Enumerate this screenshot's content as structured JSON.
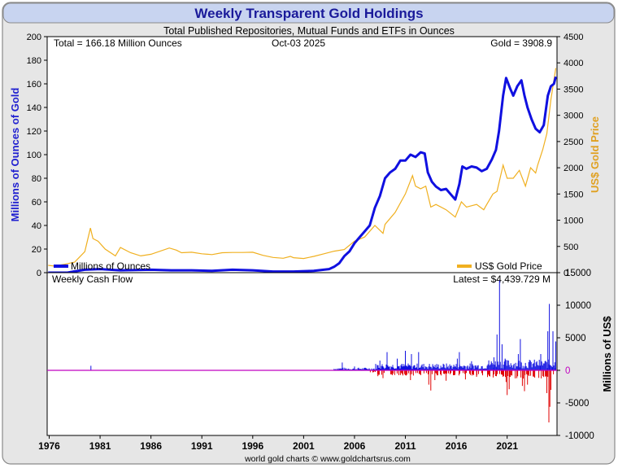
{
  "title": "Weekly Transparent Gold Holdings",
  "subtitle": "Total Published Repositories, Mutual Funds and ETFs in Ounces",
  "footer": "world gold charts © www.goldchartsrus.com",
  "colors": {
    "holdings": "#1010e0",
    "gold_price": "#f0b020",
    "inflow": "#1010e0",
    "outflow": "#e00000",
    "zero_line": "#c000c0",
    "title_bar": "#c8d4f0"
  },
  "chart_data": [
    {
      "type": "line",
      "panel": "top",
      "annotations": {
        "total": "Total = 166.18 Million Ounces",
        "date": "Oct-03  2025",
        "gold": "Gold = 3908.9"
      },
      "ylabel_left": "Millions of Ounces of Gold",
      "ylabel_right": "US$ Gold Price",
      "ylim_left": [
        0,
        200
      ],
      "ylim_right": [
        0,
        4500
      ],
      "yticks_left": [
        "0",
        "20",
        "40",
        "60",
        "80",
        "100",
        "120",
        "140",
        "160",
        "180",
        "200"
      ],
      "yticks_right": [
        "0",
        "500",
        "1000",
        "1500",
        "2000",
        "2500",
        "3000",
        "3500",
        "4000",
        "4500"
      ],
      "legend": [
        "Millions of Ounces",
        "US$ Gold Price"
      ],
      "xlim": [
        1975.8,
        2025.9
      ],
      "series": [
        {
          "name": "Millions of Ounces",
          "axis": "left",
          "points": [
            [
              1975.9,
              0
            ],
            [
              1977.8,
              0
            ],
            [
              1978.4,
              1
            ],
            [
              1979.5,
              2.5
            ],
            [
              1981,
              3
            ],
            [
              1983,
              2
            ],
            [
              1986,
              2.5
            ],
            [
              1988,
              2
            ],
            [
              1990,
              2
            ],
            [
              1992,
              1.5
            ],
            [
              1994,
              2.5
            ],
            [
              1996,
              2
            ],
            [
              1998,
              1
            ],
            [
              2000,
              1
            ],
            [
              2002,
              1.5
            ],
            [
              2003.5,
              3
            ],
            [
              2004,
              5
            ],
            [
              2004.5,
              8
            ],
            [
              2005,
              14
            ],
            [
              2005.5,
              18
            ],
            [
              2006,
              25
            ],
            [
              2006.5,
              30
            ],
            [
              2007,
              35
            ],
            [
              2007.5,
              40
            ],
            [
              2008,
              55
            ],
            [
              2008.5,
              65
            ],
            [
              2009,
              80
            ],
            [
              2009.5,
              85
            ],
            [
              2010,
              88
            ],
            [
              2010.5,
              95
            ],
            [
              2011,
              95
            ],
            [
              2011.5,
              100
            ],
            [
              2012,
              98
            ],
            [
              2012.5,
              102
            ],
            [
              2012.9,
              101
            ],
            [
              2013.2,
              85
            ],
            [
              2013.6,
              77
            ],
            [
              2014,
              73
            ],
            [
              2014.5,
              70
            ],
            [
              2015,
              71
            ],
            [
              2015.5,
              66
            ],
            [
              2015.9,
              62
            ],
            [
              2016.3,
              75
            ],
            [
              2016.6,
              90
            ],
            [
              2017,
              88
            ],
            [
              2017.5,
              90
            ],
            [
              2018,
              89
            ],
            [
              2018.5,
              86
            ],
            [
              2019,
              88
            ],
            [
              2019.5,
              96
            ],
            [
              2019.9,
              104
            ],
            [
              2020.2,
              120
            ],
            [
              2020.6,
              150
            ],
            [
              2020.9,
              165
            ],
            [
              2021.3,
              156
            ],
            [
              2021.6,
              150
            ],
            [
              2022,
              158
            ],
            [
              2022.4,
              163
            ],
            [
              2022.7,
              150
            ],
            [
              2023,
              140
            ],
            [
              2023.4,
              130
            ],
            [
              2023.8,
              122
            ],
            [
              2024.2,
              119
            ],
            [
              2024.6,
              125
            ],
            [
              2025,
              150
            ],
            [
              2025.3,
              158
            ],
            [
              2025.6,
              160
            ],
            [
              2025.78,
              166
            ]
          ]
        },
        {
          "name": "US$ Gold Price",
          "axis": "right",
          "points": [
            [
              1975.9,
              140
            ],
            [
              1976.5,
              125
            ],
            [
              1977.5,
              160
            ],
            [
              1978.5,
              200
            ],
            [
              1979.5,
              400
            ],
            [
              1980.05,
              850
            ],
            [
              1980.3,
              650
            ],
            [
              1980.8,
              600
            ],
            [
              1981.5,
              450
            ],
            [
              1982.5,
              320
            ],
            [
              1983,
              480
            ],
            [
              1984,
              380
            ],
            [
              1985,
              320
            ],
            [
              1986,
              350
            ],
            [
              1987.8,
              470
            ],
            [
              1988.5,
              430
            ],
            [
              1989,
              380
            ],
            [
              1990,
              390
            ],
            [
              1991,
              360
            ],
            [
              1992,
              345
            ],
            [
              1993,
              380
            ],
            [
              1994,
              385
            ],
            [
              1995,
              385
            ],
            [
              1996,
              390
            ],
            [
              1997,
              330
            ],
            [
              1998,
              290
            ],
            [
              1999,
              275
            ],
            [
              1999.7,
              310
            ],
            [
              2000,
              285
            ],
            [
              2001,
              270
            ],
            [
              2002,
              310
            ],
            [
              2003,
              360
            ],
            [
              2004,
              410
            ],
            [
              2005,
              440
            ],
            [
              2006,
              600
            ],
            [
              2007,
              680
            ],
            [
              2008,
              900
            ],
            [
              2008.8,
              750
            ],
            [
              2009,
              920
            ],
            [
              2010,
              1150
            ],
            [
              2011,
              1500
            ],
            [
              2011.7,
              1850
            ],
            [
              2012,
              1650
            ],
            [
              2012.5,
              1600
            ],
            [
              2013,
              1650
            ],
            [
              2013.5,
              1250
            ],
            [
              2014,
              1300
            ],
            [
              2015,
              1200
            ],
            [
              2015.9,
              1060
            ],
            [
              2016.5,
              1350
            ],
            [
              2017,
              1250
            ],
            [
              2018,
              1300
            ],
            [
              2018.7,
              1200
            ],
            [
              2019,
              1300
            ],
            [
              2019.6,
              1500
            ],
            [
              2020,
              1550
            ],
            [
              2020.6,
              2050
            ],
            [
              2021,
              1800
            ],
            [
              2021.6,
              1800
            ],
            [
              2022.2,
              1950
            ],
            [
              2022.8,
              1650
            ],
            [
              2023.3,
              2000
            ],
            [
              2023.8,
              1900
            ],
            [
              2024,
              2050
            ],
            [
              2024.5,
              2350
            ],
            [
              2024.9,
              2650
            ],
            [
              2025.3,
              3300
            ],
            [
              2025.78,
              3900
            ]
          ]
        }
      ]
    },
    {
      "type": "bar",
      "panel": "bottom",
      "label": "Weekly Cash Flow",
      "latest": "Latest = $4,439.729 M",
      "ylabel": "Millions of US$",
      "ylim": [
        -10000,
        15000
      ],
      "yticks": [
        "-10000",
        "-5000",
        "0",
        "5000",
        "10000",
        "15000"
      ],
      "xticks": [
        "1976",
        "1981",
        "1986",
        "1991",
        "1996",
        "2001",
        "2006",
        "2011",
        "2016",
        "2021"
      ],
      "positive_spikes": [
        [
          1980.1,
          700
        ],
        [
          2004.8,
          1200
        ],
        [
          2006,
          600
        ],
        [
          2008.5,
          1500
        ],
        [
          2009.2,
          2800
        ],
        [
          2010.2,
          1800
        ],
        [
          2011,
          3000
        ],
        [
          2011.6,
          2500
        ],
        [
          2012.3,
          2800
        ],
        [
          2016.1,
          1800
        ],
        [
          2016.3,
          2800
        ],
        [
          2017.5,
          1400
        ],
        [
          2019.7,
          2000
        ],
        [
          2020,
          5500
        ],
        [
          2020.25,
          13800
        ],
        [
          2020.5,
          4000
        ],
        [
          2020.8,
          1800
        ],
        [
          2022.1,
          2500
        ],
        [
          2022.3,
          4800
        ],
        [
          2024.3,
          2500
        ],
        [
          2025,
          6000
        ],
        [
          2025.15,
          10200
        ],
        [
          2025.5,
          6000
        ],
        [
          2025.78,
          4440
        ]
      ],
      "negative_spikes": [
        [
          2008.3,
          -900
        ],
        [
          2008.8,
          -1200
        ],
        [
          2011.5,
          -1500
        ],
        [
          2013.3,
          -2200
        ],
        [
          2013.5,
          -3100
        ],
        [
          2013.9,
          -1500
        ],
        [
          2015,
          -1600
        ],
        [
          2016.9,
          -1400
        ],
        [
          2018,
          -1000
        ],
        [
          2020.9,
          -1800
        ],
        [
          2021,
          -3800
        ],
        [
          2021.2,
          -2900
        ],
        [
          2022.5,
          -2400
        ],
        [
          2022.7,
          -3200
        ],
        [
          2023,
          -2200
        ],
        [
          2024.9,
          -3500
        ],
        [
          2025.1,
          -8000
        ],
        [
          2025.2,
          -5600
        ],
        [
          2025.3,
          -3000
        ]
      ]
    }
  ]
}
